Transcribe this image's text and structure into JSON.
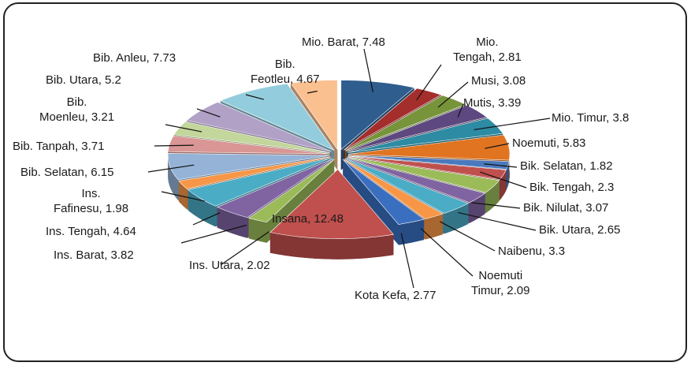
{
  "chart_data": {
    "type": "pie3d",
    "values": [
      7.48,
      2.81,
      3.08,
      3.39,
      3.8,
      5.83,
      1.82,
      2.3,
      3.07,
      2.65,
      3.3,
      2.09,
      2.77,
      12.48,
      2.02,
      3.82,
      4.64,
      1.98,
      6.15,
      3.71,
      3.21,
      5.2,
      7.73,
      4.67
    ],
    "value_labels": [
      "Mio. Barat, 7.48",
      "Mio.\nTengah, 2.81",
      "Musi, 3.08",
      "Mutis, 3.39",
      "Mio. Timur, 3.8",
      "Noemuti, 5.83",
      "Bik. Selatan, 1.82",
      "Bik. Tengah, 2.3",
      "Bik. Nilulat, 3.07",
      "Bik. Utara, 2.65",
      "Naibenu, 3.3",
      "Noemuti\nTimur, 2.09",
      "Kota Kefa, 2.77",
      "Insana, 12.48",
      "Ins. Utara, 2.02",
      "Ins. Barat, 3.82",
      "Ins. Tengah, 4.64",
      "Ins.\nFafinesu, 1.98",
      "Bib. Selatan, 6.15",
      "Bib. Tanpah, 3.71",
      "Bib.\nMoenleu, 3.21",
      "Bib. Utara, 5.2",
      "Bib. Anleu, 7.73",
      "Bib.\nFeotleu, 4.67"
    ],
    "colors": [
      "#2f5d8e",
      "#a32e2b",
      "#77943a",
      "#5d4880",
      "#2d8ba3",
      "#e07421",
      "#4a79bd",
      "#c0504d",
      "#9bbb59",
      "#8064a2",
      "#4bacc6",
      "#f79646",
      "#3a6fc0",
      "#c0504d",
      "#9bbb59",
      "#8064a2",
      "#4bacc6",
      "#f79646",
      "#95b3d7",
      "#d99694",
      "#c3d69b",
      "#b2a1c7",
      "#93cddd",
      "#fac090"
    ]
  }
}
